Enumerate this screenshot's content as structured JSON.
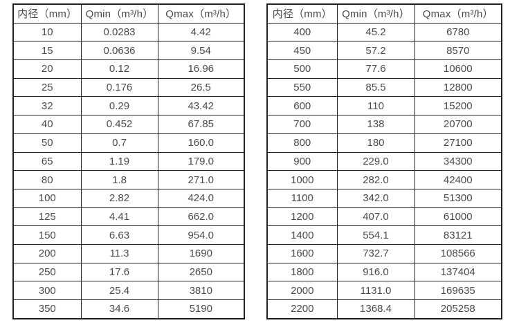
{
  "colors": {
    "border": "#1f1f1f",
    "text": "#4a4a4a",
    "background": "#ffffff"
  },
  "tables": [
    {
      "title": "small-diameter-flow-range",
      "headers": [
        "内径（mm）",
        "Qmin（m³/h）",
        "Qmax（m³/h）"
      ],
      "rows": [
        [
          "10",
          "0.0283",
          "4.42"
        ],
        [
          "15",
          "0.0636",
          "9.54"
        ],
        [
          "20",
          "0.12",
          "16.96"
        ],
        [
          "25",
          "0.176",
          "26.5"
        ],
        [
          "32",
          "0.29",
          "43.42"
        ],
        [
          "40",
          "0.452",
          "67.85"
        ],
        [
          "50",
          "0.7",
          "160.0"
        ],
        [
          "65",
          "1.19",
          "179.0"
        ],
        [
          "80",
          "1.8",
          "271.0"
        ],
        [
          "100",
          "2.82",
          "424.0"
        ],
        [
          "125",
          "4.41",
          "662.0"
        ],
        [
          "150",
          "6.63",
          "954.0"
        ],
        [
          "200",
          "11.3",
          "1690"
        ],
        [
          "250",
          "17.6",
          "2650"
        ],
        [
          "300",
          "25.4",
          "3810"
        ],
        [
          "350",
          "34.6",
          "5190"
        ]
      ]
    },
    {
      "title": "large-diameter-flow-range",
      "headers": [
        "内径（mm）",
        "Qmin（m³/h）",
        "Qmax（m³/h）"
      ],
      "rows": [
        [
          "400",
          "45.2",
          "6780"
        ],
        [
          "450",
          "57.2",
          "8570"
        ],
        [
          "500",
          "77.6",
          "10600"
        ],
        [
          "550",
          "85.5",
          "12800"
        ],
        [
          "600",
          "110",
          "15200"
        ],
        [
          "700",
          "138",
          "20700"
        ],
        [
          "800",
          "180",
          "27100"
        ],
        [
          "900",
          "229.0",
          "34300"
        ],
        [
          "1000",
          "282.0",
          "42400"
        ],
        [
          "1100",
          "342.0",
          "51300"
        ],
        [
          "1200",
          "407.0",
          "61000"
        ],
        [
          "1400",
          "554.1",
          "83121"
        ],
        [
          "1600",
          "732.7",
          "108566"
        ],
        [
          "1800",
          "916.0",
          "137404"
        ],
        [
          "2000",
          "1131.0",
          "169635"
        ],
        [
          "2200",
          "1368.4",
          "205258"
        ]
      ]
    }
  ]
}
